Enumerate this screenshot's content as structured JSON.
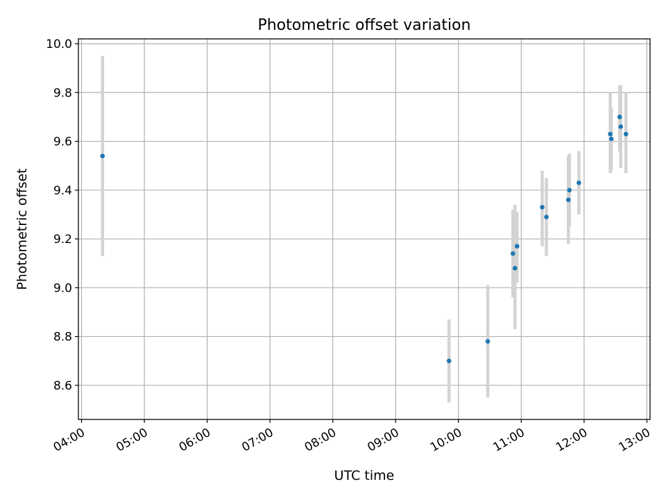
{
  "chart_data": {
    "type": "scatter",
    "title": "Photometric offset variation",
    "xlabel": "UTC time",
    "ylabel": "Photometric offset",
    "x_tick_labels": [
      "04:00",
      "05:00",
      "06:00",
      "07:00",
      "08:00",
      "09:00",
      "10:00",
      "11:00",
      "12:00",
      "13:00"
    ],
    "y_tick_labels": [
      "8.6",
      "8.8",
      "9.0",
      "9.2",
      "9.4",
      "9.6",
      "9.8",
      "10.0"
    ],
    "xlim": [
      "03:57",
      "13:03"
    ],
    "ylim": [
      8.46,
      10.02
    ],
    "grid": true,
    "colors": {
      "points": "#1f77b4",
      "error_bars": "#d3d3d3",
      "grid": "#b0b0b0"
    },
    "points": [
      {
        "time": "04:20",
        "y": 9.54,
        "y_low": 9.13,
        "y_high": 9.95
      },
      {
        "time": "09:51",
        "y": 8.7,
        "y_low": 8.53,
        "y_high": 8.87
      },
      {
        "time": "10:28",
        "y": 8.78,
        "y_low": 8.55,
        "y_high": 9.01
      },
      {
        "time": "10:52",
        "y": 9.14,
        "y_low": 8.96,
        "y_high": 9.32
      },
      {
        "time": "10:54",
        "y": 9.08,
        "y_low": 8.83,
        "y_high": 9.34
      },
      {
        "time": "10:56",
        "y": 9.17,
        "y_low": 9.02,
        "y_high": 9.31
      },
      {
        "time": "11:20",
        "y": 9.33,
        "y_low": 9.17,
        "y_high": 9.48
      },
      {
        "time": "11:24",
        "y": 9.29,
        "y_low": 9.13,
        "y_high": 9.45
      },
      {
        "time": "11:45",
        "y": 9.36,
        "y_low": 9.18,
        "y_high": 9.54
      },
      {
        "time": "11:46",
        "y": 9.4,
        "y_low": 9.25,
        "y_high": 9.55
      },
      {
        "time": "11:55",
        "y": 9.43,
        "y_low": 9.3,
        "y_high": 9.56
      },
      {
        "time": "12:25",
        "y": 9.63,
        "y_low": 9.47,
        "y_high": 9.8
      },
      {
        "time": "12:26",
        "y": 9.61,
        "y_low": 9.48,
        "y_high": 9.74
      },
      {
        "time": "12:34",
        "y": 9.7,
        "y_low": 9.56,
        "y_high": 9.83
      },
      {
        "time": "12:35",
        "y": 9.66,
        "y_low": 9.49,
        "y_high": 9.83
      },
      {
        "time": "12:40",
        "y": 9.63,
        "y_low": 9.47,
        "y_high": 9.8
      }
    ]
  }
}
